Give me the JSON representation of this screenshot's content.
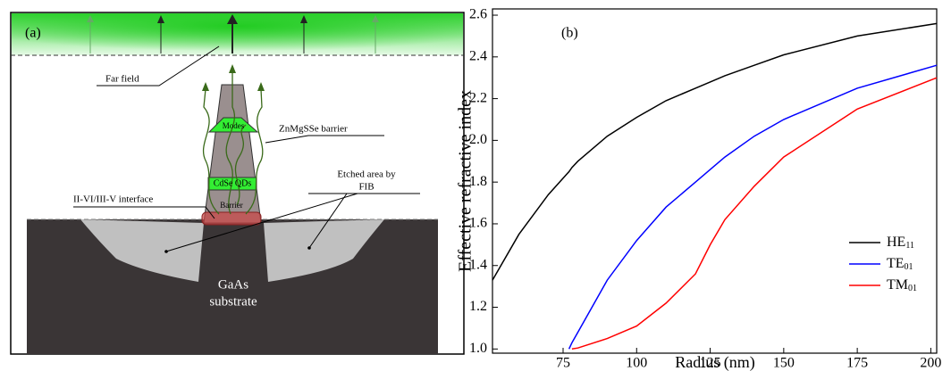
{
  "diagram": {
    "panel_label": "(a)",
    "far_field": "Far field",
    "modes": "Modes",
    "barrier_label": "ZnMgSSe barrier",
    "qds": "CdSe QDs",
    "etched": [
      "Etched area by",
      "FIB"
    ],
    "interface": "II-VI/III-V interface",
    "barrier": "Barrier",
    "substrate": [
      "GaAs",
      "substrate"
    ]
  },
  "chart_data": {
    "type": "line",
    "panel_label": "(b)",
    "xlabel": "Radius (nm)",
    "ylabel": "Effective refractive index",
    "x": [
      51,
      60,
      70,
      77,
      78,
      80,
      90,
      100,
      110,
      120,
      125,
      130,
      140,
      150,
      175,
      202
    ],
    "series": [
      {
        "name": "HE11",
        "color": "#000000",
        "values": [
          1.33,
          1.55,
          1.74,
          1.85,
          1.87,
          1.9,
          2.02,
          2.11,
          2.19,
          2.25,
          2.28,
          2.31,
          2.36,
          2.41,
          2.5,
          2.56
        ]
      },
      {
        "name": "TE01",
        "color": "#0000ff",
        "values": [
          null,
          null,
          null,
          1.0,
          1.03,
          1.08,
          1.33,
          1.52,
          1.68,
          1.8,
          1.86,
          1.92,
          2.02,
          2.1,
          2.25,
          2.36
        ]
      },
      {
        "name": "TM01",
        "color": "#ff0000",
        "values": [
          null,
          null,
          null,
          null,
          1.0,
          1.005,
          1.05,
          1.11,
          1.22,
          1.36,
          1.5,
          1.62,
          1.78,
          1.92,
          2.15,
          2.3
        ]
      }
    ],
    "xlim": [
      51,
      202
    ],
    "ylim": [
      0.98,
      2.63
    ],
    "xticks": [
      75,
      100,
      125,
      150,
      175,
      200
    ],
    "yticks": [
      {
        "value": 1.0,
        "label": "1.0"
      },
      1.2,
      1.4,
      1.6,
      1.8,
      {
        "value": 2.0,
        "label": "2.0"
      },
      2.2,
      2.4,
      2.6
    ],
    "legend": "lower right"
  }
}
